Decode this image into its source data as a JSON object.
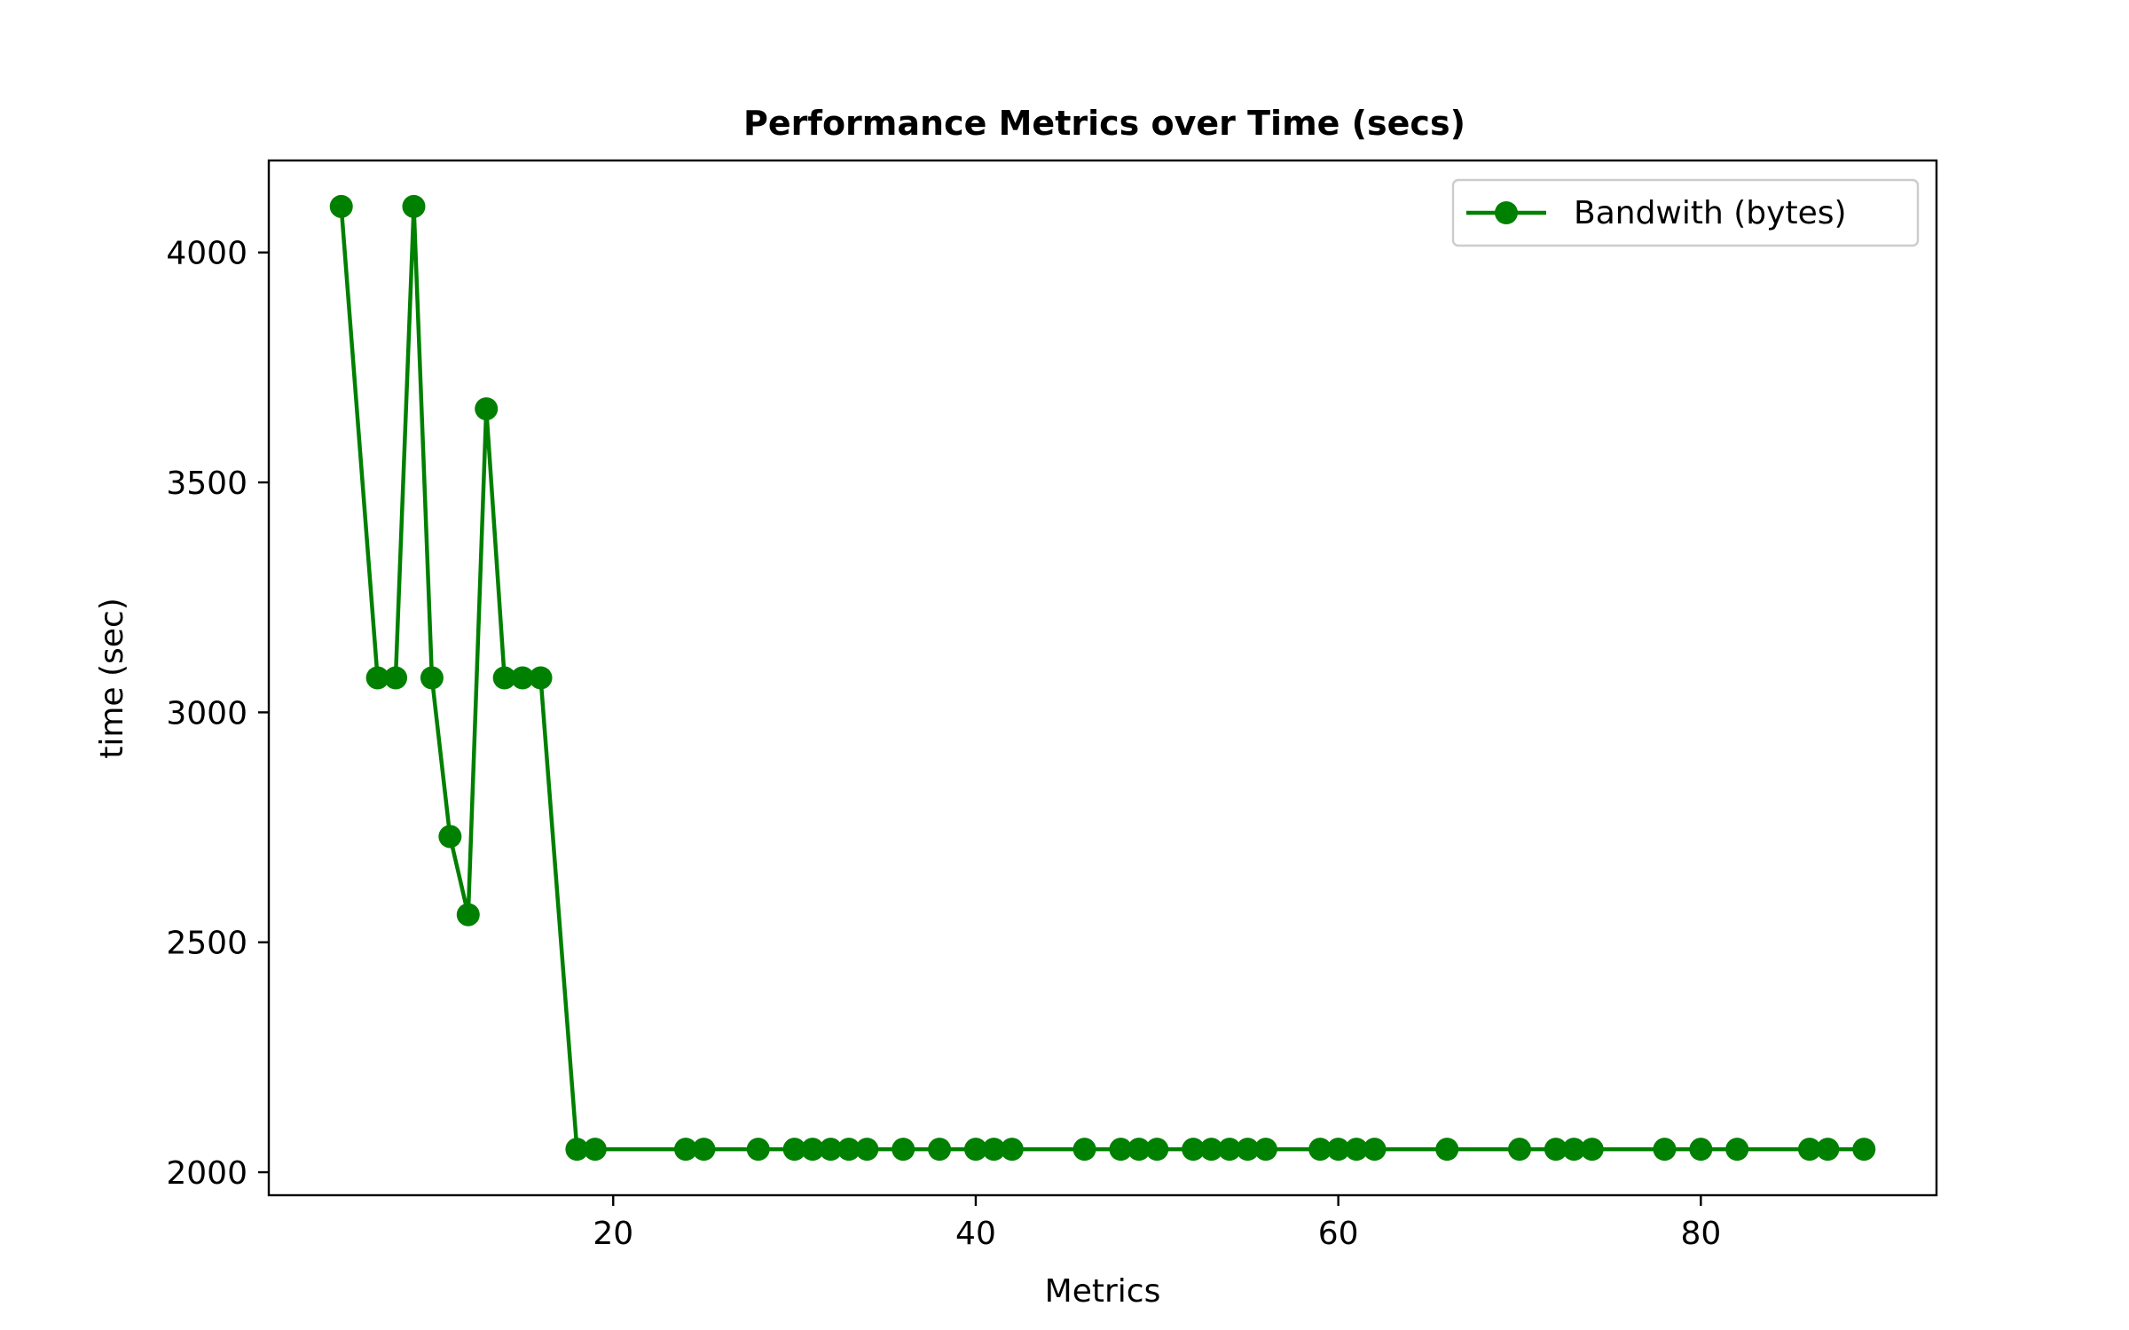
{
  "chart_data": {
    "type": "line",
    "title": "Performance Metrics over Time (secs)",
    "xlabel": "Metrics",
    "ylabel": "time (sec)",
    "xlim": [
      1,
      93
    ],
    "ylim": [
      1950,
      4200
    ],
    "xticks": [
      20,
      40,
      60,
      80
    ],
    "yticks": [
      2000,
      2500,
      3000,
      3500,
      4000
    ],
    "grid": false,
    "legend_position": "top-right",
    "series": [
      {
        "name": "Bandwith (bytes)",
        "color": "#008000",
        "marker": "circle",
        "x": [
          5,
          7,
          8,
          9,
          10,
          11,
          12,
          13,
          14,
          15,
          16,
          18,
          19,
          24,
          25,
          28,
          30,
          31,
          32,
          33,
          34,
          36,
          38,
          40,
          41,
          42,
          46,
          48,
          49,
          50,
          52,
          53,
          54,
          55,
          56,
          59,
          60,
          61,
          62,
          66,
          70,
          72,
          73,
          74,
          78,
          80,
          82,
          86,
          87,
          89
        ],
        "y": [
          4100,
          3075,
          3075,
          4100,
          3075,
          2730,
          2560,
          3660,
          3075,
          3075,
          3075,
          2050,
          2050,
          2050,
          2050,
          2050,
          2050,
          2050,
          2050,
          2050,
          2050,
          2050,
          2050,
          2050,
          2050,
          2050,
          2050,
          2050,
          2050,
          2050,
          2050,
          2050,
          2050,
          2050,
          2050,
          2050,
          2050,
          2050,
          2050,
          2050,
          2050,
          2050,
          2050,
          2050,
          2050,
          2050,
          2050,
          2050,
          2050,
          2050
        ]
      }
    ]
  }
}
